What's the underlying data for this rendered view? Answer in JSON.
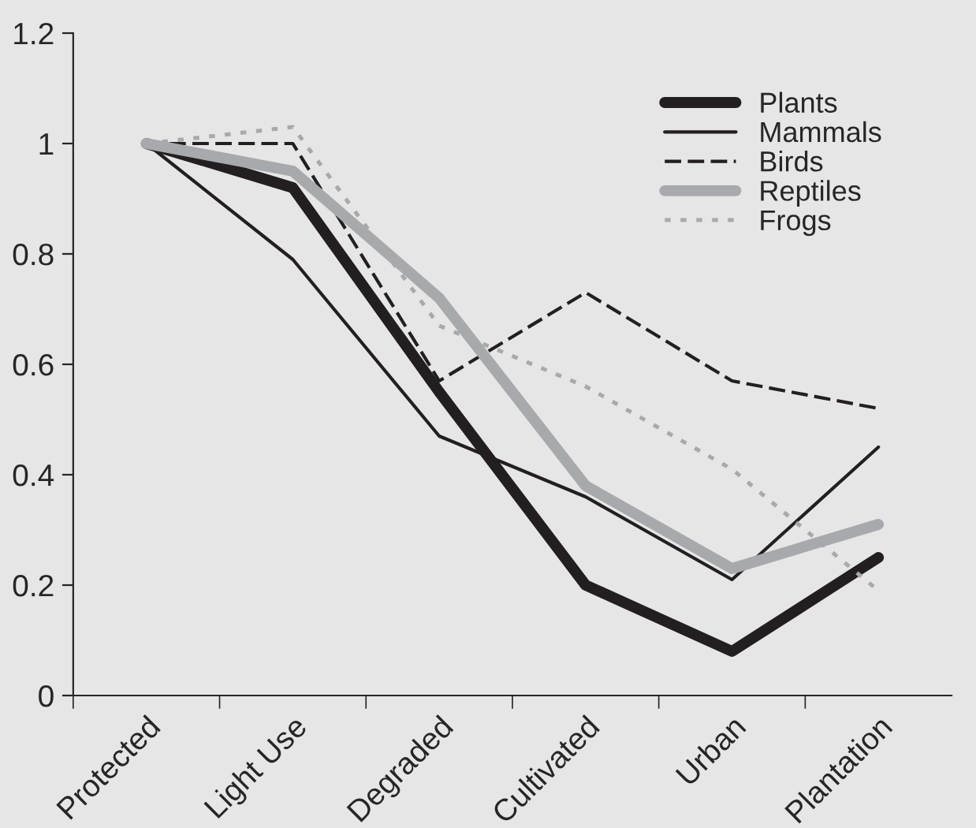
{
  "chart_data": {
    "type": "line",
    "categories": [
      "Protected",
      "Light Use",
      "Degraded",
      "Cultivated",
      "Urban",
      "Plantation"
    ],
    "series": [
      {
        "name": "Plants",
        "color": "#231f20",
        "line_style": "solid",
        "values": [
          1.0,
          0.92,
          0.55,
          0.2,
          0.08,
          0.25
        ]
      },
      {
        "name": "Mammals",
        "color": "#231f20",
        "line_style": "solid",
        "values": [
          1.0,
          0.79,
          0.47,
          0.36,
          0.21,
          0.45
        ]
      },
      {
        "name": "Birds",
        "color": "#231f20",
        "line_style": "dashed",
        "values": [
          1.0,
          1.0,
          0.57,
          0.73,
          0.57,
          0.52
        ]
      },
      {
        "name": "Reptiles",
        "color": "#a7a9ac",
        "line_style": "solid",
        "values": [
          1.0,
          0.95,
          0.72,
          0.38,
          0.23,
          0.31
        ]
      },
      {
        "name": "Frogs",
        "color": "#a7a9ac",
        "line_style": "dotted",
        "values": [
          1.0,
          1.03,
          0.67,
          0.56,
          0.41,
          0.19
        ]
      }
    ],
    "ylim": [
      0,
      1.2
    ],
    "yticks": [
      0,
      0.2,
      0.4,
      0.6,
      0.8,
      1,
      1.2
    ],
    "grid": false,
    "legend": "top right",
    "marker": "none"
  }
}
